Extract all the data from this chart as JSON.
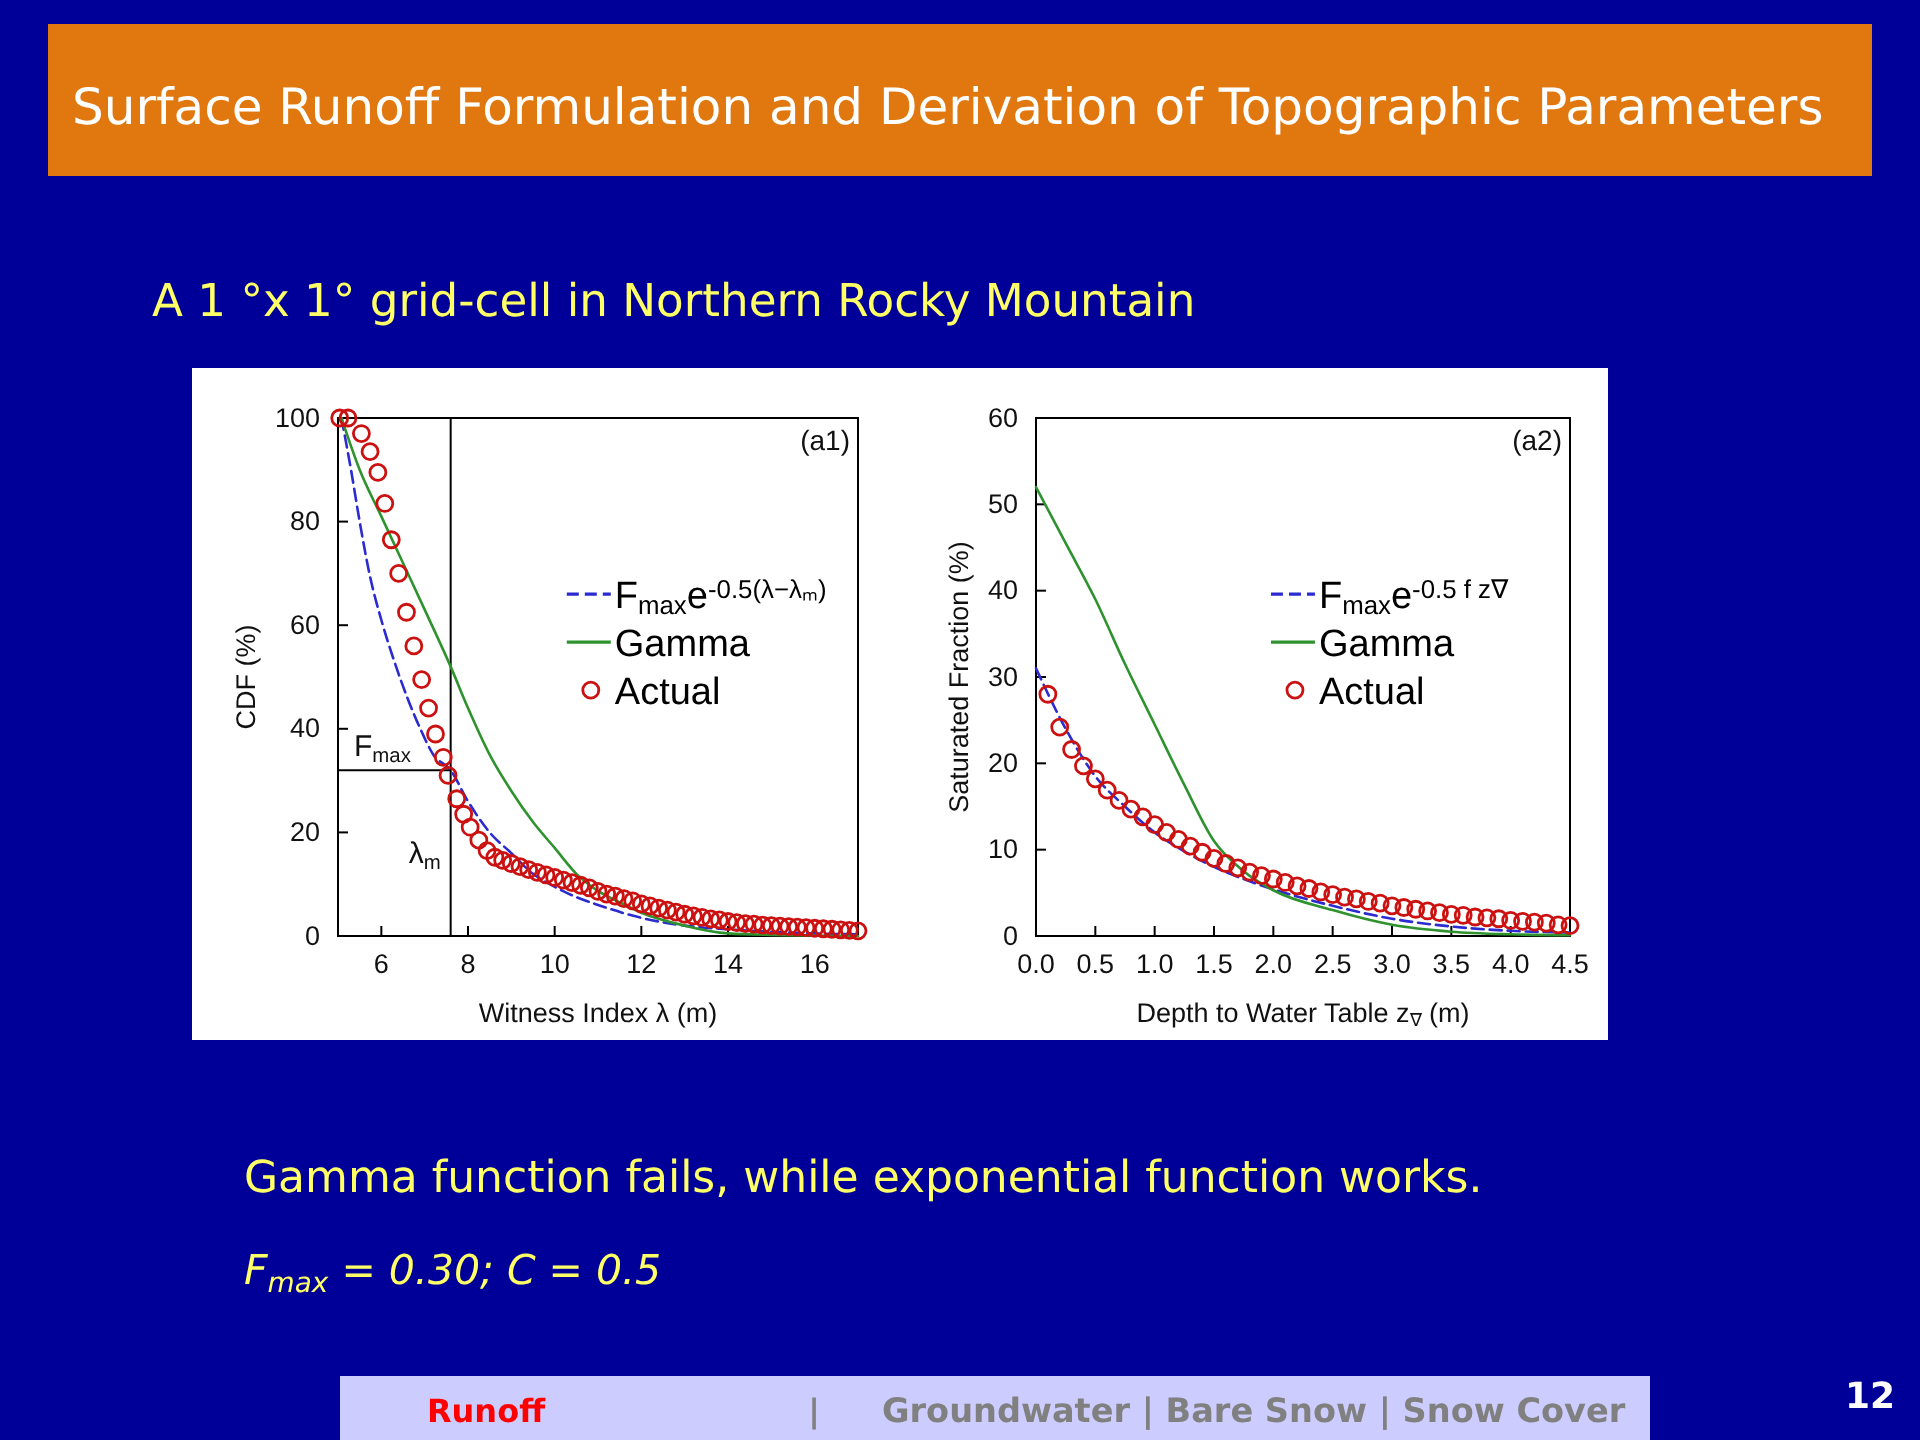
{
  "chart_data": [
    {
      "type": "line",
      "title": "Surface Runoff Formulation and Derivation of Topographic Parameters",
      "subtitle": "A 1 °x 1° grid-cell in Northern Rocky Mountain",
      "xlabel": "Witness Index λ (m)",
      "ylabel": "CDF (%)",
      "xlim": [
        5,
        17
      ],
      "ylim": [
        0,
        100
      ],
      "xticks": [
        6,
        8,
        10,
        12,
        14,
        16
      ],
      "yticks": [
        0,
        20,
        40,
        60,
        80,
        100
      ],
      "legend": "right",
      "series": [
        {
          "name": "F$_{max}$e$^{-0.5(λ−λₘ)}$",
          "type": "line",
          "color": "#2b2bd0",
          "line_style": "dashed",
          "x": [
            5.08,
            5.3,
            5.5,
            5.75,
            6.0,
            6.3,
            6.6,
            6.9,
            7.2,
            7.6,
            8.0,
            8.5,
            9.0,
            9.5,
            10,
            10.5,
            11,
            12,
            13,
            14,
            15,
            16,
            17
          ],
          "values": [
            100,
            90,
            80,
            69,
            61,
            53,
            46,
            40,
            35,
            32,
            26,
            20,
            16,
            12,
            9.5,
            7.5,
            6,
            3.5,
            2,
            1.3,
            0.8,
            0.5,
            0.3
          ]
        },
        {
          "name": "Gamma",
          "type": "line",
          "color": "#2e932e",
          "line_style": "solid",
          "x": [
            5.08,
            5.5,
            6,
            6.5,
            7,
            7.6,
            8,
            8.5,
            9,
            9.5,
            10,
            10.5,
            11,
            11.5,
            12,
            13,
            14,
            15,
            16,
            17
          ],
          "values": [
            100,
            90,
            81,
            72,
            63,
            52,
            44,
            35,
            28,
            22,
            17,
            12,
            8.7,
            6.5,
            4.5,
            2,
            0.5,
            0.2,
            0.1,
            0
          ]
        },
        {
          "name": "Actual",
          "type": "scatter",
          "color": "#cc1111",
          "marker": "circle",
          "x": [
            5.04,
            5.23,
            5.54,
            5.74,
            5.92,
            6.08,
            6.23,
            6.4,
            6.58,
            6.75,
            6.93,
            7.09,
            7.25,
            7.43,
            7.54,
            7.74,
            7.9,
            8.05,
            8.25,
            8.44,
            8.62,
            8.8,
            9.0,
            9.2,
            9.4,
            9.6,
            9.8,
            10.0,
            10.2,
            10.4,
            10.6,
            10.8,
            11.0,
            11.2,
            11.4,
            11.6,
            11.8,
            12.0,
            12.2,
            12.4,
            12.6,
            12.8,
            13.0,
            13.2,
            13.4,
            13.6,
            13.8,
            14.0,
            14.2,
            14.4,
            14.6,
            14.8,
            15.0,
            15.2,
            15.4,
            15.6,
            15.8,
            16.0,
            16.2,
            16.4,
            16.6,
            16.8,
            17.0
          ],
          "values": [
            100,
            100,
            97,
            93.5,
            89.5,
            83.5,
            76.5,
            70,
            62.5,
            56,
            49.5,
            44,
            39,
            34.5,
            31,
            26.5,
            23.5,
            21,
            18.5,
            16.5,
            15.2,
            14.6,
            14.0,
            13.4,
            12.8,
            12.3,
            11.8,
            11.3,
            10.8,
            10.3,
            9.8,
            9.3,
            8.6,
            8.1,
            7.7,
            7.2,
            6.8,
            6.2,
            5.8,
            5.4,
            5.0,
            4.6,
            4.2,
            3.9,
            3.6,
            3.3,
            3.1,
            2.8,
            2.6,
            2.4,
            2.3,
            2.1,
            2.0,
            1.9,
            1.8,
            1.7,
            1.6,
            1.5,
            1.4,
            1.3,
            1.2,
            1.1,
            1.0
          ]
        }
      ],
      "ref_lines": [
        {
          "axis": "x",
          "value": 7.6,
          "label": "λ$_{m}$",
          "color": "#000000"
        },
        {
          "axis": "y",
          "value": 32,
          "label": "F$_{max}$",
          "color": "#000000"
        }
      ],
      "annotations": [
        "(a1)",
        "Gamma function fails, while exponential function works.",
        "F$_{max}$ = 0.30; C = 0.5",
        "Runoff",
        "|",
        "Groundwater  | Bare Snow | Snow Cover",
        "12"
      ]
    },
    {
      "type": "line",
      "xlabel": "Depth to Water Table z$_{∇}$ (m)",
      "ylabel": "Saturated Fraction (%)",
      "xlim": [
        0,
        4.5
      ],
      "ylim": [
        0,
        60
      ],
      "xticks": [
        {
          "value": 0,
          "label": "0.0"
        },
        0.5,
        {
          "value": 1,
          "label": "1.0"
        },
        1.5,
        {
          "value": 2,
          "label": "2.0"
        },
        2.5,
        {
          "value": 3,
          "label": "3.0"
        },
        3.5,
        {
          "value": 4,
          "label": "4.0"
        },
        4.5
      ],
      "yticks": [
        0,
        10,
        20,
        30,
        40,
        50,
        60
      ],
      "legend": "right",
      "series": [
        {
          "name": "F$_{max}$e$^{-0.5 f z∇}$",
          "type": "line",
          "color": "#2b2bd0",
          "line_style": "dashed",
          "x": [
            0,
            0.25,
            0.5,
            0.75,
            1,
            1.25,
            1.5,
            1.75,
            2,
            2.5,
            3,
            3.5,
            4,
            4.5
          ],
          "values": [
            31,
            24,
            18.5,
            15,
            12,
            9.8,
            8,
            6.6,
            5.4,
            3.5,
            2,
            1.1,
            0.6,
            0.4
          ]
        },
        {
          "name": "Gamma",
          "type": "line",
          "color": "#2e932e",
          "line_style": "solid",
          "x": [
            0,
            0.25,
            0.5,
            0.75,
            1,
            1.25,
            1.5,
            1.75,
            2,
            2.5,
            3,
            3.5,
            4,
            4.5
          ],
          "values": [
            52,
            45.5,
            39,
            31.5,
            24.5,
            17.5,
            11,
            7.5,
            5.3,
            3.0,
            1.3,
            0.5,
            0.2,
            0.1
          ]
        },
        {
          "name": "Actual",
          "type": "scatter",
          "color": "#cc1111",
          "marker": "circle",
          "x": [
            0.1,
            0.2,
            0.3,
            0.4,
            0.5,
            0.6,
            0.7,
            0.8,
            0.9,
            1.0,
            1.1,
            1.2,
            1.3,
            1.4,
            1.5,
            1.6,
            1.7,
            1.8,
            1.9,
            2.0,
            2.1,
            2.2,
            2.3,
            2.4,
            2.5,
            2.6,
            2.7,
            2.8,
            2.9,
            3.0,
            3.1,
            3.2,
            3.3,
            3.4,
            3.5,
            3.6,
            3.7,
            3.8,
            3.9,
            4.0,
            4.1,
            4.2,
            4.3,
            4.4,
            4.5
          ],
          "values": [
            28,
            24.2,
            21.6,
            19.7,
            18.2,
            16.9,
            15.7,
            14.7,
            13.8,
            12.9,
            12.0,
            11.2,
            10.4,
            9.7,
            9.0,
            8.4,
            7.9,
            7.4,
            7.0,
            6.6,
            6.2,
            5.8,
            5.5,
            5.1,
            4.8,
            4.5,
            4.3,
            4.0,
            3.8,
            3.5,
            3.3,
            3.1,
            2.9,
            2.7,
            2.5,
            2.4,
            2.2,
            2.1,
            2.0,
            1.8,
            1.7,
            1.6,
            1.5,
            1.3,
            1.2
          ]
        }
      ],
      "annotations": [
        "(a2)"
      ]
    }
  ]
}
